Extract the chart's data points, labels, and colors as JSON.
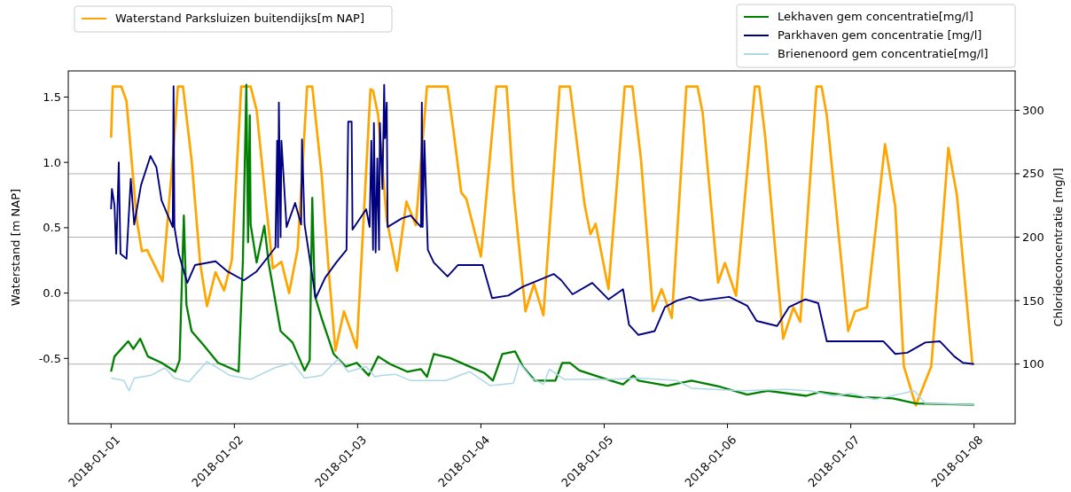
{
  "chart_data": {
    "type": "line",
    "ylabel": "Waterstand [m NAP]",
    "y2label": "Chlorideconcentratie [mg/l]",
    "xlim": [
      "2017-12-31T15:40",
      "2018-01-08T08:00"
    ],
    "xticks": [
      "2018-01-01",
      "2018-01-02",
      "2018-01-03",
      "2018-01-04",
      "2018-01-05",
      "2018-01-06",
      "2018-01-07",
      "2018-01-08"
    ],
    "ylim": [
      -1.0,
      1.7
    ],
    "yticks": [
      -0.5,
      {
        "value": 0,
        "label": "0.0"
      },
      0.5,
      {
        "value": 1,
        "label": "1.0"
      },
      1.5
    ],
    "y2lim": [
      53,
      331
    ],
    "y2ticks": [
      100,
      150,
      200,
      250,
      300
    ],
    "grid": "y",
    "legend": "top",
    "series": [
      {
        "name": "Waterstand Parksluizen buitendijks[m NAP]",
        "color": "#ffa500",
        "axis": "y",
        "x": [
          "2018-01-01T00:00",
          "2018-01-01T00:20",
          "2018-01-01T02:00",
          "2018-01-01T03:00",
          "2018-01-01T05:00",
          "2018-01-01T06:00",
          "2018-01-01T07:00",
          "2018-01-01T10:00",
          "2018-01-01T12:00",
          "2018-01-01T13:00",
          "2018-01-01T14:00",
          "2018-01-01T15:40",
          "2018-01-01T17:20",
          "2018-01-01T18:40",
          "2018-01-01T20:20",
          "2018-01-01T22:00",
          "2018-01-01T23:30",
          "2018-01-02T01:20",
          "2018-01-02T03:10",
          "2018-01-02T04:20",
          "2018-01-02T06:10",
          "2018-01-02T07:30",
          "2018-01-02T09:10",
          "2018-01-02T10:40",
          "2018-01-02T12:20",
          "2018-01-02T14:10",
          "2018-01-02T15:10",
          "2018-01-02T17:00",
          "2018-01-02T18:30",
          "2018-01-02T19:40",
          "2018-01-02T21:20",
          "2018-01-02T23:50",
          "2018-01-03T02:30",
          "2018-01-03T03:00",
          "2018-01-03T04:00",
          "2018-01-03T05:40",
          "2018-01-03T07:40",
          "2018-01-03T09:30",
          "2018-01-03T11:20",
          "2018-01-03T13:30",
          "2018-01-03T17:30",
          "2018-01-03T18:40",
          "2018-01-03T20:10",
          "2018-01-03T21:10",
          "2018-01-04T00:00",
          "2018-01-04T03:00",
          "2018-01-04T05:00",
          "2018-01-04T06:20",
          "2018-01-04T08:40",
          "2018-01-04T10:20",
          "2018-01-04T12:10",
          "2018-01-04T15:20",
          "2018-01-04T17:20",
          "2018-01-04T20:10",
          "2018-01-04T21:20",
          "2018-01-04T22:20",
          "2018-01-05T00:50",
          "2018-01-05T04:00",
          "2018-01-05T05:30",
          "2018-01-05T07:10",
          "2018-01-05T09:30",
          "2018-01-05T11:10",
          "2018-01-05T13:10",
          "2018-01-05T16:00",
          "2018-01-05T18:10",
          "2018-01-05T19:10",
          "2018-01-05T22:10",
          "2018-01-05T23:30",
          "2018-01-06T01:40",
          "2018-01-06T05:20",
          "2018-01-06T06:10",
          "2018-01-06T07:20",
          "2018-01-06T10:50",
          "2018-01-06T12:50",
          "2018-01-06T14:10",
          "2018-01-06T17:20",
          "2018-01-06T18:20",
          "2018-01-06T19:20",
          "2018-01-06T23:30",
          "2018-01-07T00:50",
          "2018-01-07T03:10",
          "2018-01-07T06:40",
          "2018-01-07T08:40",
          "2018-01-07T10:20",
          "2018-01-07T12:40",
          "2018-01-07T15:40",
          "2018-01-07T17:40",
          "2018-01-07T19:00",
          "2018-01-07T20:40",
          "2018-01-07T23:40"
        ],
        "values": [
          1.19,
          1.58,
          1.58,
          1.47,
          0.56,
          0.32,
          0.33,
          0.09,
          1.02,
          1.58,
          1.58,
          1.02,
          0.23,
          -0.1,
          0.16,
          0.02,
          0.25,
          1.58,
          1.58,
          1.4,
          0.68,
          0.19,
          0.24,
          0.0,
          0.34,
          1.58,
          1.58,
          0.9,
          0.11,
          -0.44,
          -0.14,
          -0.42,
          1.56,
          1.55,
          1.36,
          0.56,
          0.17,
          0.7,
          0.52,
          1.58,
          1.58,
          1.24,
          0.77,
          0.72,
          0.28,
          1.58,
          1.58,
          0.79,
          -0.14,
          0.07,
          -0.17,
          1.58,
          1.58,
          0.68,
          0.45,
          0.53,
          0.03,
          1.58,
          1.58,
          1.02,
          -0.14,
          0.03,
          -0.19,
          1.58,
          1.58,
          1.38,
          0.08,
          0.23,
          -0.02,
          1.58,
          1.58,
          1.2,
          -0.35,
          -0.11,
          -0.22,
          1.58,
          1.58,
          1.36,
          -0.29,
          -0.14,
          -0.11,
          1.14,
          0.66,
          -0.56,
          -0.86,
          -0.56,
          0.43,
          1.11,
          0.75,
          -0.54
        ]
      },
      {
        "name": "Lekhaven gem concentratie[mg/l]",
        "color": "#008000",
        "axis": "y2",
        "x": [
          "2018-01-01T00:00",
          "2018-01-01T00:40",
          "2018-01-01T03:20",
          "2018-01-01T04:20",
          "2018-01-01T05:40",
          "2018-01-01T07:10",
          "2018-01-01T09:50",
          "2018-01-01T12:30",
          "2018-01-01T13:20",
          "2018-01-01T14:10",
          "2018-01-01T14:40",
          "2018-01-01T15:40",
          "2018-01-01T18:00",
          "2018-01-01T20:50",
          "2018-01-02T00:50",
          "2018-01-02T01:40",
          "2018-01-02T02:20",
          "2018-01-02T02:40",
          "2018-01-02T03:00",
          "2018-01-02T03:10",
          "2018-01-02T04:20",
          "2018-01-02T05:50",
          "2018-01-02T06:40",
          "2018-01-02T09:00",
          "2018-01-02T11:20",
          "2018-01-02T13:40",
          "2018-01-02T14:40",
          "2018-01-02T15:10",
          "2018-01-02T15:40",
          "2018-01-02T17:00",
          "2018-01-02T19:20",
          "2018-01-02T21:40",
          "2018-01-02T23:50",
          "2018-01-03T02:10",
          "2018-01-03T04:00",
          "2018-01-03T06:20",
          "2018-01-03T09:40",
          "2018-01-03T12:20",
          "2018-01-03T13:30",
          "2018-01-03T14:50",
          "2018-01-03T17:50",
          "2018-01-03T21:50",
          "2018-01-04T00:40",
          "2018-01-04T02:20",
          "2018-01-04T04:10",
          "2018-01-04T06:40",
          "2018-01-04T08:10",
          "2018-01-04T10:30",
          "2018-01-04T14:30",
          "2018-01-04T15:50",
          "2018-01-04T17:20",
          "2018-01-04T19:10",
          "2018-01-04T23:40",
          "2018-01-05T03:40",
          "2018-01-05T05:40",
          "2018-01-05T06:40",
          "2018-01-05T12:20",
          "2018-01-05T17:00",
          "2018-01-05T22:40",
          "2018-01-06T03:50",
          "2018-01-06T07:50",
          "2018-01-06T15:20",
          "2018-01-06T18:00",
          "2018-01-07T01:40",
          "2018-01-07T08:10",
          "2018-01-07T12:40",
          "2018-01-08T00:00"
        ],
        "values": [
          94,
          106,
          118,
          112,
          120,
          106,
          101,
          94,
          103,
          217,
          147,
          126,
          115,
          101,
          94,
          182,
          320,
          196,
          296,
          210,
          180,
          209,
          180,
          126,
          117,
          95,
          103,
          231,
          154,
          136,
          108,
          98,
          101,
          91,
          106,
          100,
          94,
          96,
          90,
          108,
          105,
          98,
          93,
          87,
          108,
          110,
          98,
          87,
          87,
          101,
          101,
          95,
          89,
          84,
          91,
          87,
          83,
          87,
          82,
          76,
          79,
          75,
          78,
          74,
          73,
          69,
          68
        ]
      },
      {
        "name": "Parkhaven gem concentratie [mg/l]",
        "color": "#000080",
        "axis": "y2",
        "x": [
          "2018-01-01T00:00",
          "2018-01-01T00:10",
          "2018-01-01T00:40",
          "2018-01-01T01:00",
          "2018-01-01T01:30",
          "2018-01-01T01:50",
          "2018-01-01T03:00",
          "2018-01-01T03:50",
          "2018-01-01T04:30",
          "2018-01-01T05:50",
          "2018-01-01T07:40",
          "2018-01-01T08:50",
          "2018-01-01T09:50",
          "2018-01-01T12:00",
          "2018-01-01T12:10",
          "2018-01-01T12:20",
          "2018-01-01T13:10",
          "2018-01-01T14:50",
          "2018-01-01T16:20",
          "2018-01-01T20:20",
          "2018-01-01T22:40",
          "2018-01-02T01:50",
          "2018-01-02T04:20",
          "2018-01-02T06:40",
          "2018-01-02T08:00",
          "2018-01-02T08:20",
          "2018-01-02T08:30",
          "2018-01-02T08:40",
          "2018-01-02T09:00",
          "2018-01-02T09:10",
          "2018-01-02T10:10",
          "2018-01-02T11:50",
          "2018-01-02T13:00",
          "2018-01-02T13:10",
          "2018-01-02T13:40",
          "2018-01-02T15:50",
          "2018-01-02T17:40",
          "2018-01-02T19:50",
          "2018-01-02T21:50",
          "2018-01-02T22:10",
          "2018-01-02T22:50",
          "2018-01-02T23:00",
          "2018-01-03T01:40",
          "2018-01-03T02:20",
          "2018-01-03T02:40",
          "2018-01-03T03:00",
          "2018-01-03T03:10",
          "2018-01-03T03:30",
          "2018-01-03T03:50",
          "2018-01-03T04:10",
          "2018-01-03T04:20",
          "2018-01-03T04:50",
          "2018-01-03T05:10",
          "2018-01-03T05:20",
          "2018-01-03T05:40",
          "2018-01-03T05:50",
          "2018-01-03T08:40",
          "2018-01-03T10:20",
          "2018-01-03T12:20",
          "2018-01-03T12:30",
          "2018-01-03T12:40",
          "2018-01-03T13:00",
          "2018-01-03T13:20",
          "2018-01-03T13:40",
          "2018-01-03T14:50",
          "2018-01-03T17:30",
          "2018-01-03T19:30",
          "2018-01-04T00:20",
          "2018-01-04T00:50",
          "2018-01-04T02:10",
          "2018-01-04T05:20",
          "2018-01-04T08:10",
          "2018-01-04T14:10",
          "2018-01-04T15:40",
          "2018-01-04T17:50",
          "2018-01-04T21:40",
          "2018-01-05T00:50",
          "2018-01-05T03:40",
          "2018-01-05T04:50",
          "2018-01-05T06:40",
          "2018-01-05T09:50",
          "2018-01-05T11:50",
          "2018-01-05T14:10",
          "2018-01-05T16:40",
          "2018-01-05T18:40",
          "2018-01-06T00:20",
          "2018-01-06T03:50",
          "2018-01-06T05:40",
          "2018-01-06T09:40",
          "2018-01-06T12:00",
          "2018-01-06T15:10",
          "2018-01-06T17:40",
          "2018-01-06T19:20",
          "2018-01-06T23:30",
          "2018-01-07T06:20",
          "2018-01-07T08:40",
          "2018-01-07T11:00",
          "2018-01-07T14:30",
          "2018-01-07T17:20",
          "2018-01-07T20:10",
          "2018-01-07T21:50",
          "2018-01-08T00:00"
        ],
        "values": [
          222,
          238,
          225,
          187,
          259,
          187,
          183,
          246,
          210,
          241,
          264,
          255,
          229,
          208,
          319,
          208,
          187,
          164,
          178,
          181,
          173,
          166,
          173,
          185,
          192,
          276,
          192,
          306,
          200,
          276,
          208,
          227,
          210,
          277,
          210,
          152,
          168,
          180,
          190,
          291,
          291,
          206,
          222,
          208,
          276,
          190,
          290,
          188,
          262,
          190,
          290,
          238,
          320,
          278,
          306,
          208,
          215,
          217,
          208,
          306,
          208,
          276,
          231,
          190,
          180,
          169,
          178,
          178,
          171,
          152,
          154,
          161,
          171,
          166,
          155,
          164,
          151,
          159,
          131,
          123,
          126,
          145,
          150,
          153,
          150,
          153,
          146,
          134,
          130,
          145,
          151,
          148,
          118,
          118,
          118,
          108,
          109,
          117,
          118,
          106,
          101,
          100
        ]
      },
      {
        "name": "Brienenoord gem concentratie[mg/l]",
        "color": "#add8e6",
        "axis": "y2",
        "x": [
          "2018-01-01T00:00",
          "2018-01-01T02:30",
          "2018-01-01T03:30",
          "2018-01-01T04:30",
          "2018-01-01T07:40",
          "2018-01-01T10:30",
          "2018-01-01T12:20",
          "2018-01-01T15:10",
          "2018-01-01T18:40",
          "2018-01-01T20:20",
          "2018-01-01T23:10",
          "2018-01-02T03:10",
          "2018-01-02T07:50",
          "2018-01-02T11:20",
          "2018-01-02T13:40",
          "2018-01-02T17:00",
          "2018-01-02T20:10",
          "2018-01-02T22:10",
          "2018-01-03T01:40",
          "2018-01-03T03:20",
          "2018-01-03T04:40",
          "2018-01-03T07:20",
          "2018-01-03T10:20",
          "2018-01-03T17:10",
          "2018-01-03T21:50",
          "2018-01-04T01:50",
          "2018-01-04T06:20",
          "2018-01-04T07:30",
          "2018-01-04T09:50",
          "2018-01-04T12:10",
          "2018-01-04T13:20",
          "2018-01-04T16:10",
          "2018-01-05T00:50",
          "2018-01-05T06:40",
          "2018-01-05T14:10",
          "2018-01-05T17:00",
          "2018-01-06T02:40",
          "2018-01-06T11:20",
          "2018-01-06T16:00",
          "2018-01-06T20:40",
          "2018-01-07T00:00",
          "2018-01-07T04:40",
          "2018-01-07T12:20",
          "2018-01-07T14:30",
          "2018-01-08T00:00"
        ],
        "values": [
          89,
          87,
          79,
          89,
          91,
          97,
          89,
          86,
          102,
          98,
          91,
          88,
          97,
          101,
          89,
          91,
          104,
          94,
          98,
          90,
          91,
          92,
          87,
          87,
          94,
          83,
          85,
          101,
          89,
          84,
          96,
          88,
          88,
          89,
          87,
          81,
          79,
          80,
          79,
          75,
          77,
          72,
          79,
          69,
          68
        ]
      }
    ]
  }
}
